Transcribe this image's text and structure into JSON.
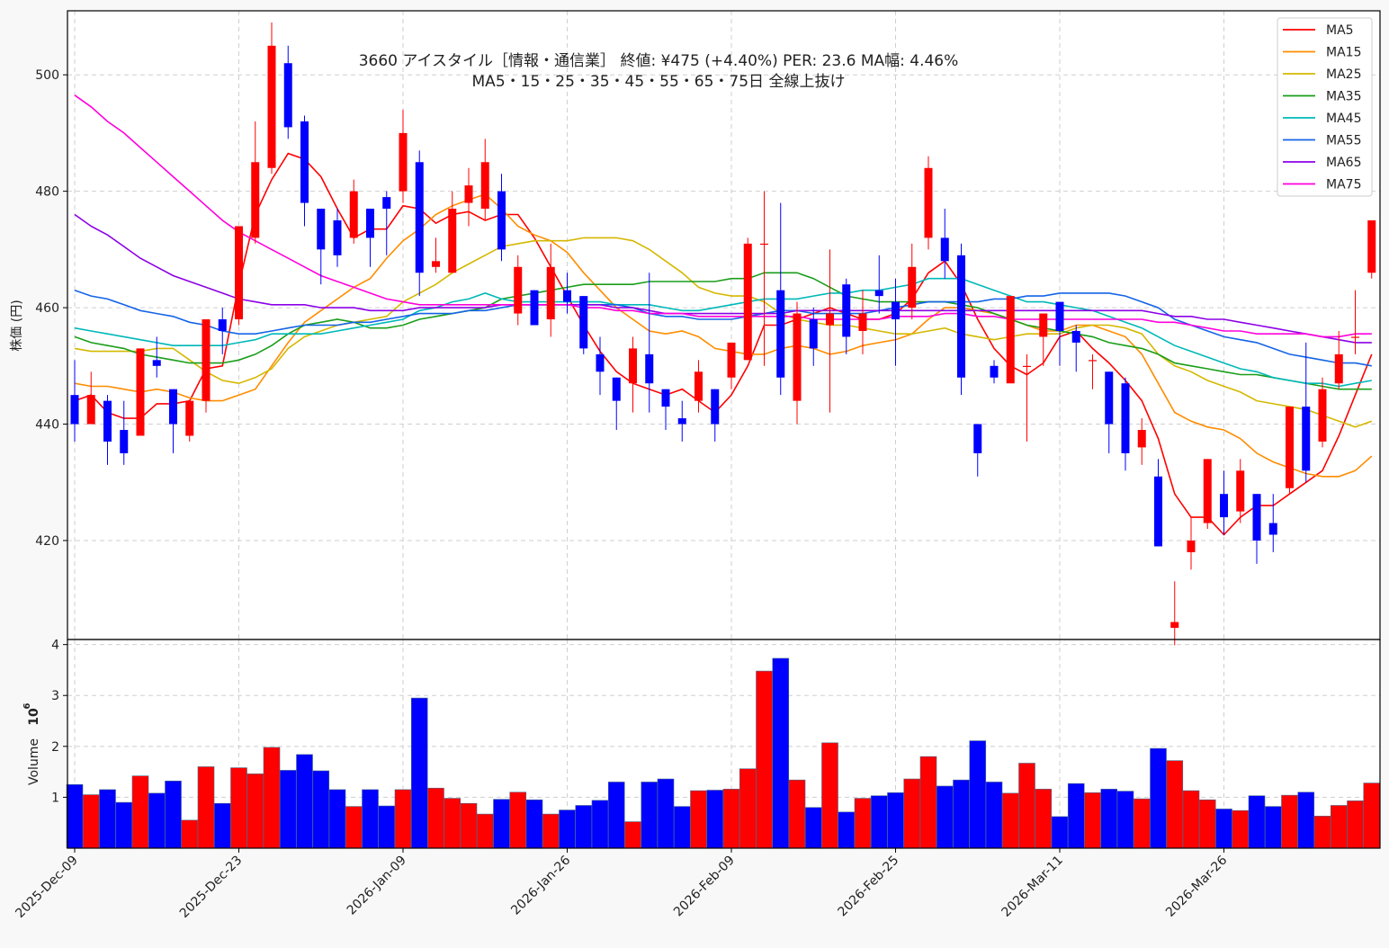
{
  "chart_data": {
    "type": "candlestick",
    "title_line1": "3660 アイスタイル［情報・通信業］ 終値: ¥475 (+4.40%)  PER: 23.6  MA幅: 4.46%",
    "title_line2": "MA5・15・25・35・45・55・65・75日 全線上抜け",
    "ylabel": "株価 (円)",
    "volume_ylabel": "Volume",
    "volume_exponent": "10",
    "volume_exponent_power": "6",
    "ylim": [
      403,
      511
    ],
    "yticks": [
      420,
      440,
      460,
      480,
      500
    ],
    "volume_ylim": [
      0,
      4.1
    ],
    "volume_yticks": [
      1,
      2,
      3,
      4
    ],
    "xtick_labels": [
      {
        "index": 0,
        "label": "2025-Dec-09"
      },
      {
        "index": 10,
        "label": "2025-Dec-23"
      },
      {
        "index": 20,
        "label": "2026-Jan-09"
      },
      {
        "index": 30,
        "label": "2026-Jan-26"
      },
      {
        "index": 40,
        "label": "2026-Feb-09"
      },
      {
        "index": 50,
        "label": "2026-Feb-25"
      },
      {
        "index": 60,
        "label": "2026-Mar-11"
      },
      {
        "index": 70,
        "label": "2026-Mar-26"
      }
    ],
    "up_color": "#ff0000",
    "down_color": "#0000ff",
    "candles": [
      [
        445,
        451,
        437,
        440
      ],
      [
        440,
        449,
        440,
        445
      ],
      [
        444,
        445,
        433,
        437
      ],
      [
        439,
        444,
        433,
        435
      ],
      [
        438,
        453,
        438,
        453
      ],
      [
        451,
        455,
        448,
        450
      ],
      [
        446,
        446,
        435,
        440
      ],
      [
        438,
        444,
        437,
        444
      ],
      [
        444,
        458,
        442,
        458
      ],
      [
        458,
        460,
        452,
        456
      ],
      [
        458,
        474,
        457,
        474
      ],
      [
        472,
        492,
        471,
        485
      ],
      [
        484,
        509,
        483,
        505
      ],
      [
        502,
        505,
        489,
        491
      ],
      [
        492,
        493,
        474,
        478
      ],
      [
        477,
        477,
        464,
        470
      ],
      [
        475,
        477,
        467,
        469
      ],
      [
        472,
        482,
        471,
        480
      ],
      [
        477,
        477,
        467,
        472
      ],
      [
        479,
        480,
        469,
        477
      ],
      [
        480,
        494,
        478,
        490
      ],
      [
        485,
        487,
        462,
        466
      ],
      [
        467,
        472,
        466,
        468
      ],
      [
        466,
        480,
        466,
        477
      ],
      [
        478,
        484,
        474,
        481
      ],
      [
        477,
        489,
        475,
        485
      ],
      [
        480,
        483,
        468,
        470
      ],
      [
        459,
        469,
        457,
        467
      ],
      [
        463,
        463,
        457,
        457
      ],
      [
        458,
        471,
        455,
        467
      ],
      [
        463,
        466,
        459,
        461
      ],
      [
        462,
        462,
        452,
        453
      ],
      [
        452,
        455,
        445,
        449
      ],
      [
        448,
        448,
        439,
        444
      ],
      [
        447,
        455,
        442,
        453
      ],
      [
        452,
        466,
        442,
        447
      ],
      [
        446,
        446,
        439,
        443
      ],
      [
        441,
        444,
        437,
        440
      ],
      [
        444,
        451,
        442,
        449
      ],
      [
        446,
        446,
        437,
        440
      ],
      [
        448,
        454,
        446,
        454
      ],
      [
        451,
        472,
        451,
        471
      ],
      [
        471,
        480,
        450,
        471
      ],
      [
        463,
        478,
        445,
        448
      ],
      [
        444,
        461,
        440,
        459
      ],
      [
        458,
        460,
        450,
        453
      ],
      [
        457,
        470,
        442,
        459
      ],
      [
        464,
        465,
        452,
        455
      ],
      [
        456,
        463,
        452,
        459
      ],
      [
        463,
        469,
        459,
        462
      ],
      [
        461,
        465,
        450,
        458
      ],
      [
        460,
        471,
        458,
        467
      ],
      [
        472,
        486,
        470,
        484
      ],
      [
        472,
        477,
        465,
        468
      ],
      [
        469,
        471,
        445,
        448
      ],
      [
        440,
        440,
        431,
        435
      ],
      [
        450,
        451,
        447,
        448
      ],
      [
        447,
        461,
        447,
        462
      ],
      [
        450,
        452,
        437,
        450
      ],
      [
        455,
        458,
        450,
        459
      ],
      [
        461,
        461,
        450,
        456
      ],
      [
        456,
        457,
        449,
        454
      ],
      [
        451,
        452,
        446,
        451
      ],
      [
        449,
        449,
        435,
        440
      ],
      [
        447,
        448,
        432,
        435
      ],
      [
        436,
        441,
        433,
        439
      ],
      [
        431,
        434,
        419,
        419
      ],
      [
        405,
        413,
        402,
        406
      ],
      [
        418,
        424,
        415,
        420
      ],
      [
        423,
        434,
        422,
        434
      ],
      [
        428,
        432,
        421,
        424
      ],
      [
        425,
        434,
        423,
        432
      ],
      [
        428,
        428,
        416,
        420
      ],
      [
        423,
        428,
        418,
        421
      ],
      [
        429,
        442,
        428,
        443
      ],
      [
        443,
        454,
        430,
        432
      ],
      [
        437,
        448,
        436,
        446
      ],
      [
        447,
        456,
        446,
        452
      ],
      [
        455,
        463,
        452,
        455
      ],
      [
        466,
        475,
        465,
        475
      ]
    ],
    "volume": [
      1.25,
      1.05,
      1.15,
      0.9,
      1.42,
      1.08,
      1.32,
      0.55,
      1.6,
      0.88,
      1.58,
      1.46,
      1.98,
      1.53,
      1.84,
      1.52,
      1.15,
      0.82,
      1.15,
      0.83,
      1.15,
      2.95,
      1.18,
      0.98,
      0.88,
      0.67,
      0.96,
      1.1,
      0.95,
      0.67,
      0.75,
      0.84,
      0.94,
      1.3,
      0.52,
      1.3,
      1.36,
      0.82,
      1.13,
      1.14,
      1.16,
      1.56,
      3.48,
      3.73,
      1.34,
      0.8,
      2.07,
      0.71,
      0.98,
      1.03,
      1.09,
      1.36,
      1.8,
      1.22,
      1.34,
      2.11,
      1.3,
      1.08,
      1.67,
      1.16,
      0.62,
      1.27,
      1.09,
      1.16,
      1.12,
      0.97,
      1.96,
      1.72,
      1.13,
      0.95,
      0.77,
      0.74,
      1.03,
      0.82,
      1.04,
      1.1,
      0.63,
      0.84,
      0.93,
      1.28
    ],
    "series": [
      {
        "name": "MA5",
        "color": "#ff0000",
        "values": [
          444,
          445,
          442,
          441,
          441,
          443.5,
          443.5,
          444,
          449.5,
          450,
          464,
          476,
          482,
          486.5,
          485.5,
          482.5,
          477,
          472,
          473.5,
          473.5,
          477.5,
          477,
          474.5,
          476,
          476.5,
          475,
          476,
          476,
          472,
          467,
          462,
          457,
          452.5,
          449,
          447,
          446,
          445,
          446,
          444,
          442,
          445,
          450,
          457,
          457,
          458,
          459,
          460,
          459,
          458,
          458,
          459,
          461.5,
          466,
          468,
          464,
          458,
          453,
          450,
          448.5,
          450.5,
          455,
          456,
          453,
          450.5,
          447.5,
          444,
          437.5,
          428,
          424,
          424,
          421,
          424,
          426,
          426,
          428,
          430,
          432,
          438,
          445,
          452
        ]
      },
      {
        "name": "MA15",
        "color": "#ff8c00",
        "values": [
          447,
          446.5,
          446.5,
          446,
          445.5,
          446,
          445.5,
          444.5,
          444,
          444,
          445,
          446,
          450,
          454,
          457.5,
          459.5,
          461.5,
          463.5,
          465,
          468.5,
          471.5,
          473.5,
          476,
          477.5,
          478.5,
          479.5,
          477,
          474,
          472.5,
          471.5,
          469.5,
          466,
          463,
          460,
          458,
          456,
          455.5,
          456,
          455,
          453,
          452.5,
          452,
          452,
          453,
          453.5,
          453,
          452,
          452.5,
          453.5,
          454,
          454.5,
          455.5,
          458,
          460,
          460,
          459.5,
          459,
          458,
          457,
          456,
          456,
          457,
          457,
          456,
          455,
          452,
          447,
          442,
          440.5,
          439.5,
          439,
          437.5,
          435,
          433.5,
          432.5,
          431.5,
          431,
          431,
          432,
          434.5
        ]
      },
      {
        "name": "MA25",
        "color": "#d4b800",
        "values": [
          453,
          452.5,
          452.5,
          452.5,
          452.5,
          453,
          453,
          451,
          449,
          447.5,
          447,
          448,
          449.5,
          453,
          455,
          456,
          457,
          457.5,
          458,
          458.5,
          461,
          462.5,
          464,
          466,
          467.5,
          469,
          470.5,
          471,
          471.5,
          471.5,
          471.5,
          472,
          472,
          472,
          471.5,
          470,
          468,
          466,
          463.5,
          462.5,
          462,
          462,
          461,
          459,
          458,
          457.5,
          457,
          457,
          456.5,
          456,
          455.5,
          455.5,
          456,
          456.5,
          455.5,
          455,
          454.5,
          455,
          455.5,
          455.5,
          455.5,
          456.5,
          457,
          457,
          456.5,
          455.5,
          452,
          450,
          449,
          447.5,
          446.5,
          445.5,
          444,
          443.5,
          443,
          442.5,
          441.5,
          440.5,
          439.5,
          440.5
        ]
      },
      {
        "name": "MA35",
        "color": "#1a9e1a",
        "values": [
          455,
          454,
          453.5,
          453,
          452,
          451.5,
          451,
          450.5,
          450.5,
          450.5,
          451,
          452,
          453.5,
          455.5,
          457,
          457.5,
          458,
          457.5,
          456.5,
          456.5,
          457,
          458,
          458.5,
          459,
          459.5,
          460,
          461.5,
          462,
          462.5,
          463,
          463.5,
          464,
          464,
          464,
          464,
          464.5,
          464.5,
          464.5,
          464.5,
          464.5,
          465,
          465,
          466,
          466,
          466,
          465,
          463.5,
          462,
          461.5,
          461,
          461,
          461,
          461,
          461,
          460.5,
          460,
          459,
          458,
          457,
          456.5,
          456,
          455.5,
          455,
          454,
          453.5,
          453,
          452,
          450.5,
          450,
          449.5,
          449,
          448.5,
          448.5,
          448,
          447.5,
          447,
          446.5,
          446,
          446,
          446
        ]
      },
      {
        "name": "MA45",
        "color": "#00b8b8",
        "values": [
          456.5,
          456,
          455.5,
          455,
          454.5,
          454,
          453.5,
          453.5,
          453.5,
          453.5,
          454,
          454.5,
          455.5,
          455.5,
          455.5,
          455.5,
          456,
          456.5,
          457,
          457.5,
          458,
          459.5,
          460,
          461,
          461.5,
          462.5,
          461.5,
          461,
          461,
          461,
          461,
          461,
          461,
          460.5,
          460.5,
          460.5,
          460,
          459.5,
          459.5,
          460,
          460.5,
          461,
          461.5,
          461.5,
          461.5,
          462,
          462.5,
          462.5,
          463,
          463,
          463.5,
          464,
          465,
          465,
          465,
          464,
          463,
          462,
          461,
          461,
          460.5,
          460,
          459.5,
          458.5,
          457.5,
          456.5,
          455,
          453.5,
          452.5,
          451.5,
          450.5,
          449.5,
          449,
          448,
          447.5,
          447,
          447,
          446.5,
          447,
          447.5
        ]
      },
      {
        "name": "MA55",
        "color": "#1464e6",
        "values": [
          463,
          462,
          461.5,
          460.5,
          459.5,
          459,
          458.5,
          457.5,
          457,
          456,
          455.5,
          455.5,
          456,
          456.5,
          457,
          457,
          457,
          457.5,
          457.5,
          458,
          458.5,
          459,
          459,
          459,
          459.5,
          459.5,
          460,
          460.5,
          460.5,
          460.5,
          460.5,
          460.5,
          460.5,
          460.5,
          460,
          459,
          458.5,
          458.5,
          458,
          458,
          458,
          458.5,
          459,
          459.5,
          459.5,
          459,
          459,
          459,
          459,
          459.5,
          460,
          460.5,
          461,
          461,
          461,
          461,
          461.5,
          461.5,
          462,
          462,
          462.5,
          462.5,
          462.5,
          462.5,
          462,
          461,
          460,
          458,
          457,
          456,
          455,
          454.5,
          454,
          453,
          452,
          451.5,
          451,
          450.5,
          450.5,
          450
        ]
      },
      {
        "name": "MA65",
        "color": "#8c00e6",
        "values": [
          476,
          474,
          472.5,
          470.5,
          468.5,
          467,
          465.5,
          464.5,
          463.5,
          462.5,
          461.5,
          461,
          460.5,
          460.5,
          460.5,
          460,
          460,
          460,
          459.5,
          459.5,
          459.5,
          460,
          460,
          460,
          460,
          460,
          460.5,
          460.5,
          460.5,
          460.5,
          460.5,
          460.5,
          460.5,
          460,
          460,
          459.5,
          459,
          459,
          459,
          459,
          459,
          459,
          459,
          459,
          459.5,
          459.5,
          459.5,
          459.5,
          459.5,
          459.5,
          459.5,
          459.5,
          459.5,
          459.5,
          459.5,
          459.5,
          459.5,
          459.5,
          459.5,
          459.5,
          459.5,
          459.5,
          459.5,
          459.5,
          459.5,
          459.5,
          459,
          458.5,
          458.5,
          458,
          458,
          457.5,
          457,
          456.5,
          456,
          455.5,
          455,
          454.5,
          454,
          454
        ]
      },
      {
        "name": "MA75",
        "color": "#ff00dc",
        "values": [
          496.5,
          494.5,
          492,
          490,
          487.5,
          485,
          482.5,
          480,
          477.5,
          475,
          473,
          471.5,
          470,
          468.5,
          467,
          465.5,
          464.5,
          463.5,
          462.5,
          461.5,
          461,
          460.5,
          460.5,
          460.5,
          460.5,
          460.5,
          460.5,
          460.5,
          460.5,
          460.5,
          460.5,
          460,
          460,
          459.5,
          459.5,
          459,
          459,
          459,
          458.5,
          458.5,
          458.5,
          458.5,
          458.5,
          458.5,
          458.5,
          458,
          458,
          458,
          458,
          458,
          458.5,
          458.5,
          458.5,
          459,
          459,
          458.5,
          458.5,
          458,
          458,
          458,
          458,
          458,
          458,
          458,
          458,
          458,
          457.5,
          457.5,
          457,
          456.5,
          456,
          456,
          455.5,
          455.5,
          455.5,
          455.5,
          455,
          455,
          455.5,
          455.5
        ]
      }
    ]
  }
}
